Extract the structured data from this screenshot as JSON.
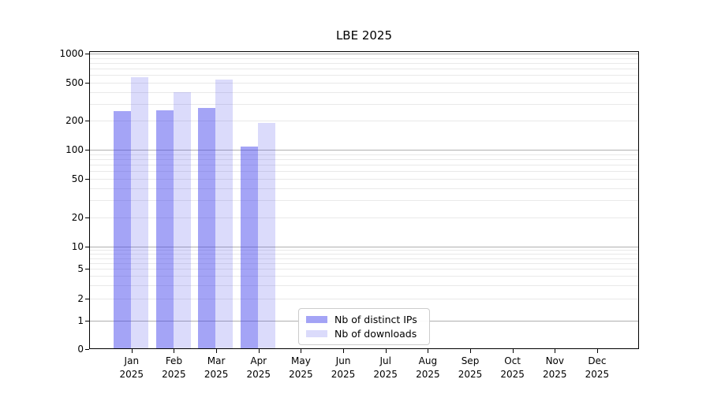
{
  "chart_data": {
    "type": "bar",
    "title": "LBE 2025",
    "yscale": "symlog",
    "ylim": [
      0,
      1000
    ],
    "y_ticks": [
      0,
      1,
      2,
      5,
      10,
      20,
      50,
      100,
      200,
      500,
      1000
    ],
    "grid": true,
    "legend_position": "lower center",
    "categories": [
      {
        "month": "Jan",
        "year": "2025"
      },
      {
        "month": "Feb",
        "year": "2025"
      },
      {
        "month": "Mar",
        "year": "2025"
      },
      {
        "month": "Apr",
        "year": "2025"
      },
      {
        "month": "May",
        "year": "2025"
      },
      {
        "month": "Jun",
        "year": "2025"
      },
      {
        "month": "Jul",
        "year": "2025"
      },
      {
        "month": "Aug",
        "year": "2025"
      },
      {
        "month": "Sep",
        "year": "2025"
      },
      {
        "month": "Oct",
        "year": "2025"
      },
      {
        "month": "Nov",
        "year": "2025"
      },
      {
        "month": "Dec",
        "year": "2025"
      }
    ],
    "series": [
      {
        "name": "Nb of distinct IPs",
        "fill": "rgba(62,62,235,0.47)",
        "color_hex_on_white": "#a4a4f5",
        "values": [
          250,
          255,
          270,
          108,
          0,
          0,
          0,
          0,
          0,
          0,
          0,
          0
        ]
      },
      {
        "name": "Nb of downloads",
        "fill": "rgba(62,62,235,0.185)",
        "color_hex_on_white": "#dadaf9",
        "values": [
          565,
          400,
          540,
          190,
          0,
          0,
          0,
          0,
          0,
          0,
          0,
          0
        ]
      }
    ],
    "colors": {
      "grid_major": "#b0b0b0",
      "grid_minor": "#e9e9e9",
      "spine": "#000000",
      "background": "#ffffff"
    }
  }
}
